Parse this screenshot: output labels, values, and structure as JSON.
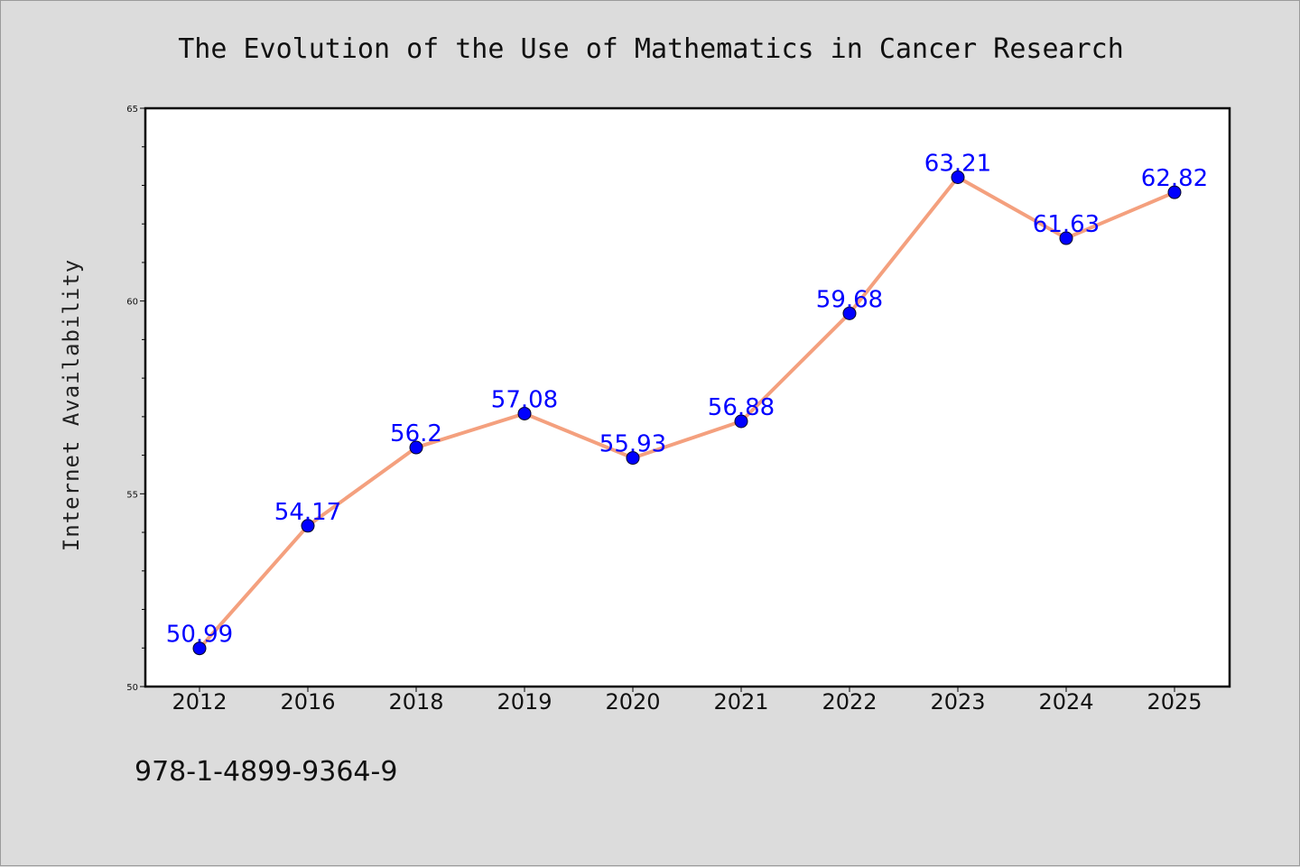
{
  "chart_data": {
    "type": "line",
    "title": "The Evolution of the Use of Mathematics in Cancer Research",
    "xlabel": "",
    "ylabel": "Internet Availability",
    "categories": [
      "2012",
      "2016",
      "2018",
      "2019",
      "2020",
      "2021",
      "2022",
      "2023",
      "2024",
      "2025"
    ],
    "series": [
      {
        "values": [
          50.99,
          54.17,
          56.2,
          57.08,
          55.93,
          56.88,
          59.68,
          63.21,
          61.63,
          62.82
        ],
        "labels": [
          "50.99",
          "54.17",
          "56.2",
          "57.08",
          "55.93",
          "56.88",
          "59.68",
          "63.21",
          "61.63",
          "62.82"
        ]
      }
    ],
    "ylim": [
      50,
      65
    ],
    "y_major_ticks": [
      50,
      55,
      60,
      65
    ],
    "y_minor_step": 1,
    "grid": false,
    "legend": "none",
    "colors": {
      "line": "#f4a07e",
      "marker": "#0000ff",
      "label": "#0000ff",
      "background": "#dcdcdc",
      "plot_background": "#ffffff"
    }
  },
  "footer": {
    "isbn": "978-1-4899-9364-9"
  }
}
